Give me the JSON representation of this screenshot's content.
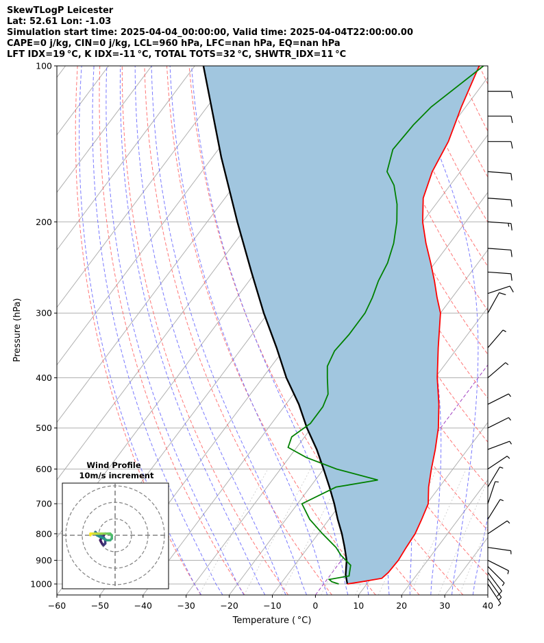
{
  "header": {
    "line1": "SkewTLogP Leicester",
    "line2": "Lat: 52.61   Lon: -1.03",
    "line3": "Simulation start time: 2025-04-04_00:00:00, Valid time: 2025-04-04T22:00:00.00",
    "line4": "CAPE=0 j/kg, CIN=0 j/kg, LCL=960 hPa, LFC=nan hPa, EQ=nan hPa",
    "line5": "LFT IDX=19$^\\circ$C, K IDX=-11$^\\circ$C, TOTAL TOTS=32$^\\circ$C, SHWTR_IDX=11$^\\circ$C"
  },
  "header_display": {
    "line5": "LFT IDX=19 °C, K IDX=-11 °C, TOTAL TOTS=32 °C, SHWTR_IDX=11 °C"
  },
  "chart_data": {
    "type": "line",
    "title": "SkewTLogP Leicester",
    "xlabel": "Temperature ( °C)",
    "ylabel": "Pressure (hPa)",
    "xlim": [
      -60,
      40
    ],
    "ylim": [
      1050,
      100
    ],
    "y_scale": "log",
    "skew": "skew-T log-P",
    "grid": true,
    "x_ticks": [
      "−60",
      "−50",
      "−40",
      "−30",
      "−20",
      "−10",
      "0",
      "10",
      "20",
      "30",
      "40"
    ],
    "y_ticks": [
      "100",
      "200",
      "300",
      "400",
      "500",
      "600",
      "700",
      "800",
      "900",
      "1000"
    ],
    "colors": {
      "temperature": "#ff0000",
      "dewpoint": "#008000",
      "parcel": "#000000",
      "shade": "#a1c6df",
      "dry_adiabat": "#ff6666",
      "moist_adiabat": "#6a6aff",
      "mixing_ratio": "#a0a0a0",
      "isotherm_0": "#a040c0"
    },
    "series": [
      {
        "name": "Temperature",
        "points": [
          [
            1000,
            5.5
          ],
          [
            990,
            8.5
          ],
          [
            975,
            12.5
          ],
          [
            950,
            13.0
          ],
          [
            900,
            13.2
          ],
          [
            850,
            12.8
          ],
          [
            800,
            12.5
          ],
          [
            750,
            11.5
          ],
          [
            700,
            10.3
          ],
          [
            650,
            7.5
          ],
          [
            600,
            5.0
          ],
          [
            550,
            2.5
          ],
          [
            500,
            -0.5
          ],
          [
            450,
            -4.5
          ],
          [
            400,
            -9.5
          ],
          [
            350,
            -14.5
          ],
          [
            300,
            -20.0
          ],
          [
            280,
            -23.5
          ],
          [
            260,
            -27.0
          ],
          [
            240,
            -31.0
          ],
          [
            220,
            -35.5
          ],
          [
            200,
            -40.0
          ],
          [
            180,
            -44.0
          ],
          [
            160,
            -46.5
          ],
          [
            140,
            -48.0
          ],
          [
            120,
            -51.0
          ],
          [
            100,
            -54.0
          ]
        ]
      },
      {
        "name": "Dewpoint",
        "points": [
          [
            1000,
            3.5
          ],
          [
            990,
            1.5
          ],
          [
            980,
            0.5
          ],
          [
            965,
            4.5
          ],
          [
            950,
            4.0
          ],
          [
            920,
            3.0
          ],
          [
            880,
            -1.0
          ],
          [
            850,
            -3.5
          ],
          [
            800,
            -9.0
          ],
          [
            750,
            -14.5
          ],
          [
            700,
            -19.0
          ],
          [
            650,
            -14.0
          ],
          [
            630,
            -5.5
          ],
          [
            600,
            -17.0
          ],
          [
            570,
            -26.0
          ],
          [
            545,
            -32.0
          ],
          [
            520,
            -33.0
          ],
          [
            490,
            -31.0
          ],
          [
            455,
            -31.0
          ],
          [
            430,
            -32.0
          ],
          [
            400,
            -35.0
          ],
          [
            380,
            -37.0
          ],
          [
            355,
            -38.0
          ],
          [
            330,
            -37.5
          ],
          [
            300,
            -37.5
          ],
          [
            280,
            -38.5
          ],
          [
            260,
            -40.0
          ],
          [
            240,
            -41.0
          ],
          [
            220,
            -43.0
          ],
          [
            200,
            -46.0
          ],
          [
            185,
            -49.0
          ],
          [
            170,
            -53.0
          ],
          [
            160,
            -57.0
          ],
          [
            145,
            -59.5
          ],
          [
            130,
            -59.0
          ],
          [
            120,
            -58.0
          ],
          [
            100,
            -53.0
          ]
        ]
      },
      {
        "name": "Parcel profile",
        "points": [
          [
            1000,
            5.5
          ],
          [
            960,
            3.5
          ],
          [
            900,
            1.2
          ],
          [
            850,
            -1.5
          ],
          [
            800,
            -4.5
          ],
          [
            750,
            -8.0
          ],
          [
            700,
            -11.5
          ],
          [
            650,
            -15.5
          ],
          [
            600,
            -20.0
          ],
          [
            550,
            -25.0
          ],
          [
            500,
            -31.0
          ],
          [
            450,
            -37.0
          ],
          [
            400,
            -44.5
          ],
          [
            350,
            -52.0
          ],
          [
            300,
            -61.0
          ],
          [
            250,
            -71.0
          ],
          [
            200,
            -83.0
          ],
          [
            150,
            -98.0
          ],
          [
            100,
            -118.0
          ]
        ]
      }
    ],
    "wind_barbs": [
      {
        "p": 1000,
        "u": -4,
        "v": 6
      },
      {
        "p": 975,
        "u": -5,
        "v": 7
      },
      {
        "p": 950,
        "u": -6,
        "v": 8
      },
      {
        "p": 925,
        "u": -7,
        "v": 7
      },
      {
        "p": 900,
        "u": -8,
        "v": 4
      },
      {
        "p": 850,
        "u": -7,
        "v": 1
      },
      {
        "p": 800,
        "u": -6,
        "v": -4
      },
      {
        "p": 750,
        "u": -5,
        "v": -8
      },
      {
        "p": 700,
        "u": -2,
        "v": -6
      },
      {
        "p": 650,
        "u": -3,
        "v": -5
      },
      {
        "p": 600,
        "u": -6,
        "v": -4
      },
      {
        "p": 550,
        "u": -8,
        "v": -3
      },
      {
        "p": 500,
        "u": -8,
        "v": -4
      },
      {
        "p": 450,
        "u": -8,
        "v": -4
      },
      {
        "p": 400,
        "u": -7,
        "v": -6
      },
      {
        "p": 350,
        "u": -6,
        "v": -7
      },
      {
        "p": 300,
        "u": -5,
        "v": -9
      },
      {
        "p": 275,
        "u": -12,
        "v": -4
      },
      {
        "p": 250,
        "u": -14,
        "v": 1
      },
      {
        "p": 225,
        "u": -14,
        "v": 1
      },
      {
        "p": 200,
        "u": -15,
        "v": 1
      },
      {
        "p": 180,
        "u": -14,
        "v": 1
      },
      {
        "p": 160,
        "u": -13,
        "v": 1
      },
      {
        "p": 140,
        "u": -12,
        "v": 0
      },
      {
        "p": 125,
        "u": -12,
        "v": 0
      },
      {
        "p": 112,
        "u": -11,
        "v": 0
      }
    ],
    "hodograph": {
      "title": "Wind Profile",
      "subtitle": "10m/s increment",
      "rings_ms": [
        10,
        20,
        30
      ],
      "points": [
        [
          -6,
          1
        ],
        [
          -8,
          -1
        ],
        [
          -9,
          -3
        ],
        [
          -8,
          -5
        ],
        [
          -7,
          -6
        ],
        [
          -6,
          -5
        ],
        [
          -6,
          -3
        ],
        [
          -7,
          -1
        ],
        [
          -9,
          0
        ],
        [
          -11,
          1
        ],
        [
          -12,
          2
        ],
        [
          -12,
          1
        ],
        [
          -11,
          0
        ],
        [
          -9,
          -1
        ],
        [
          -7,
          -2
        ],
        [
          -5,
          -3
        ],
        [
          -3,
          -3
        ],
        [
          -2,
          -2
        ],
        [
          -2,
          0
        ],
        [
          -3,
          1
        ],
        [
          -4,
          1
        ],
        [
          -6,
          1
        ],
        [
          -8,
          1
        ],
        [
          -10,
          1
        ],
        [
          -12,
          1
        ],
        [
          -14,
          1
        ],
        [
          -15,
          1
        ],
        [
          -15,
          0
        ]
      ]
    }
  }
}
